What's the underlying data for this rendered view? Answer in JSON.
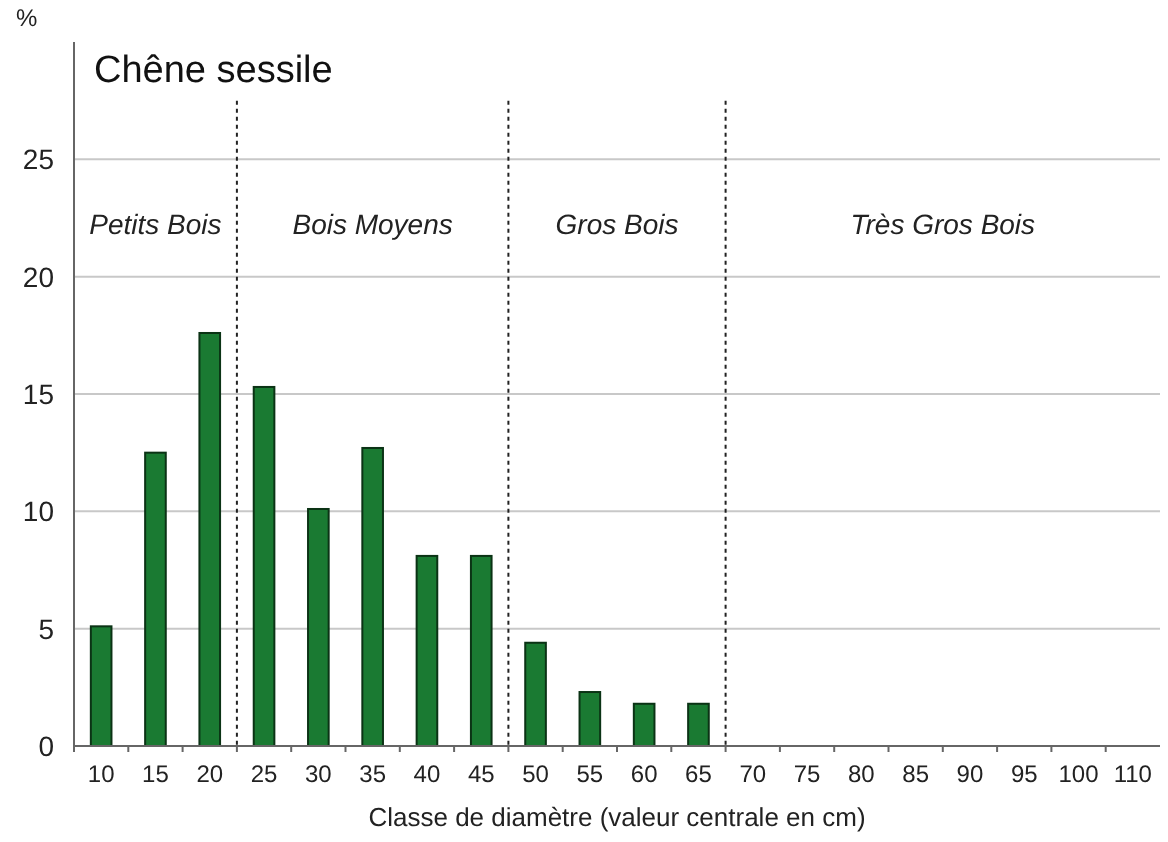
{
  "chart_data": {
    "type": "bar",
    "title": "Chêne sessile",
    "xlabel": "Classe de diamètre (valeur centrale en cm)",
    "ylabel": "%",
    "categories": [
      "10",
      "15",
      "20",
      "25",
      "30",
      "35",
      "40",
      "45",
      "50",
      "55",
      "60",
      "65",
      "70",
      "75",
      "80",
      "85",
      "90",
      "95",
      "100",
      "110"
    ],
    "values": [
      5.1,
      12.5,
      17.6,
      15.3,
      10.1,
      12.7,
      8.1,
      8.1,
      4.4,
      2.3,
      1.8,
      1.8,
      0,
      0,
      0,
      0,
      0,
      0,
      0,
      0
    ],
    "color": "#1a7a32",
    "ylim": [
      0,
      30
    ],
    "yticks": [
      0,
      5,
      10,
      15,
      20,
      25
    ],
    "grid": "y",
    "annotations": [
      "Petits Bois",
      "Bois Moyens",
      "Gros Bois",
      "Très Gros Bois"
    ]
  }
}
